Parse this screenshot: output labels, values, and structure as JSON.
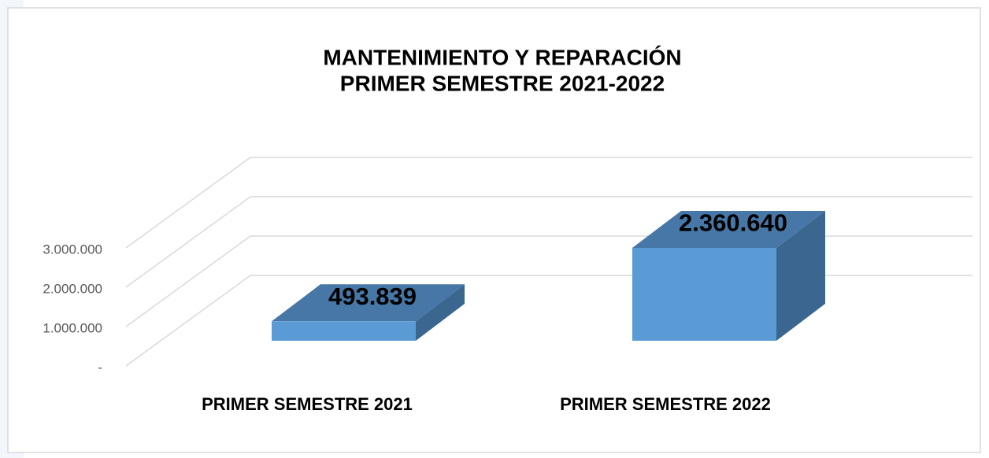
{
  "chart_data": {
    "type": "bar3d",
    "title": "MANTENIMIENTO Y REPARACIÓN",
    "subtitle": "PRIMER SEMESTRE 2021-2022",
    "categories": [
      "PRIMER SEMESTRE 2021",
      "PRIMER SEMESTRE 2022"
    ],
    "values": [
      493839,
      2360640
    ],
    "value_labels": [
      "493.839",
      "2.360.640"
    ],
    "color": "#5b9bd5",
    "ylim": [
      0,
      3000000
    ],
    "yticks": [
      {
        "value": 0,
        "label": "-"
      },
      {
        "value": 1000000,
        "label": "1.000.000"
      },
      {
        "value": 2000000,
        "label": "2.000.000"
      },
      {
        "value": 3000000,
        "label": "3.000.000"
      }
    ],
    "grid": true
  }
}
